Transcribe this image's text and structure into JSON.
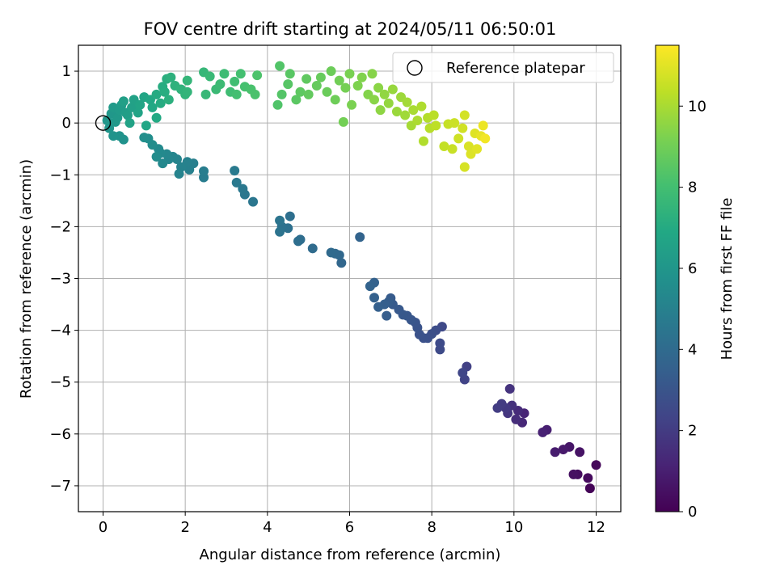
{
  "chart_data": {
    "type": "scatter",
    "title": "FOV centre drift starting at 2024/05/11 06:50:01",
    "xlabel": "Angular distance from reference (arcmin)",
    "ylabel": "Rotation from reference (arcmin)",
    "xlim": [
      -0.6,
      12.6
    ],
    "ylim": [
      -7.5,
      1.5
    ],
    "xticks": [
      0,
      2,
      4,
      6,
      8,
      10,
      12
    ],
    "yticks": [
      -7,
      -6,
      -5,
      -4,
      -3,
      -2,
      -1,
      0,
      1
    ],
    "grid": true,
    "colormap": "viridis",
    "colorbar": {
      "label": "Hours from first FF file",
      "range": [
        0,
        11.5
      ],
      "ticks": [
        0,
        2,
        4,
        6,
        8,
        10
      ]
    },
    "legend": {
      "placement": "top-right",
      "entries": [
        "Reference platepar"
      ]
    },
    "reference_point": {
      "x": 0,
      "y": 0
    },
    "points": [
      [
        11.85,
        -7.05,
        0.1
      ],
      [
        12.0,
        -6.6,
        0.2
      ],
      [
        11.8,
        -6.85,
        0.3
      ],
      [
        11.55,
        -6.78,
        0.4
      ],
      [
        11.45,
        -6.78,
        0.5
      ],
      [
        11.6,
        -6.35,
        0.6
      ],
      [
        11.35,
        -6.25,
        0.7
      ],
      [
        11.2,
        -6.3,
        0.8
      ],
      [
        11.0,
        -6.35,
        0.9
      ],
      [
        10.8,
        -5.92,
        1.0
      ],
      [
        10.7,
        -5.97,
        1.1
      ],
      [
        10.25,
        -5.6,
        1.2
      ],
      [
        10.2,
        -5.78,
        1.3
      ],
      [
        10.1,
        -5.55,
        1.4
      ],
      [
        10.05,
        -5.72,
        1.5
      ],
      [
        9.95,
        -5.45,
        1.6
      ],
      [
        9.9,
        -5.13,
        1.7
      ],
      [
        9.85,
        -5.6,
        1.8
      ],
      [
        9.8,
        -5.5,
        1.9
      ],
      [
        9.7,
        -5.42,
        2.0
      ],
      [
        9.6,
        -5.5,
        2.05
      ],
      [
        8.85,
        -4.7,
        2.2
      ],
      [
        8.8,
        -4.95,
        2.3
      ],
      [
        8.75,
        -4.82,
        2.4
      ],
      [
        8.25,
        -3.93,
        2.5
      ],
      [
        8.2,
        -4.37,
        2.55
      ],
      [
        8.2,
        -4.25,
        2.6
      ],
      [
        8.1,
        -4.0,
        2.7
      ],
      [
        8.0,
        -4.07,
        2.75
      ],
      [
        7.9,
        -4.15,
        2.8
      ],
      [
        7.8,
        -4.15,
        2.85
      ],
      [
        7.7,
        -4.08,
        2.9
      ],
      [
        7.65,
        -3.95,
        2.95
      ],
      [
        7.6,
        -3.85,
        3.0
      ],
      [
        7.5,
        -3.8,
        3.05
      ],
      [
        7.4,
        -3.72,
        3.1
      ],
      [
        7.3,
        -3.7,
        3.15
      ],
      [
        7.2,
        -3.6,
        3.2
      ],
      [
        7.05,
        -3.5,
        3.25
      ],
      [
        7.0,
        -3.38,
        3.3
      ],
      [
        6.95,
        -3.45,
        3.35
      ],
      [
        6.9,
        -3.72,
        3.4
      ],
      [
        6.85,
        -3.5,
        3.45
      ],
      [
        6.7,
        -3.55,
        3.5
      ],
      [
        6.6,
        -3.37,
        3.55
      ],
      [
        6.6,
        -3.08,
        3.6
      ],
      [
        6.5,
        -3.15,
        3.65
      ],
      [
        6.25,
        -2.2,
        3.7
      ],
      [
        5.8,
        -2.7,
        3.8
      ],
      [
        5.75,
        -2.55,
        3.85
      ],
      [
        5.65,
        -2.52,
        3.9
      ],
      [
        5.55,
        -2.5,
        3.95
      ],
      [
        5.1,
        -2.42,
        4.0
      ],
      [
        4.8,
        -2.25,
        4.1
      ],
      [
        4.75,
        -2.28,
        4.15
      ],
      [
        4.55,
        -1.8,
        4.2
      ],
      [
        4.5,
        -2.03,
        4.25
      ],
      [
        4.35,
        -2.0,
        4.3
      ],
      [
        4.3,
        -2.1,
        4.35
      ],
      [
        4.3,
        -1.88,
        4.4
      ],
      [
        3.65,
        -1.52,
        4.5
      ],
      [
        3.45,
        -1.38,
        4.55
      ],
      [
        3.4,
        -1.27,
        4.6
      ],
      [
        3.25,
        -1.15,
        4.65
      ],
      [
        3.2,
        -0.92,
        4.7
      ],
      [
        2.45,
        -1.05,
        4.8
      ],
      [
        2.45,
        -0.93,
        4.85
      ],
      [
        2.2,
        -0.78,
        4.9
      ],
      [
        2.1,
        -0.9,
        4.95
      ],
      [
        2.05,
        -0.75,
        5.0
      ],
      [
        1.9,
        -0.85,
        5.05
      ],
      [
        1.85,
        -0.98,
        5.1
      ],
      [
        1.8,
        -0.7,
        5.15
      ],
      [
        1.7,
        -0.65,
        5.2
      ],
      [
        1.6,
        -0.7,
        5.25
      ],
      [
        1.55,
        -0.6,
        5.3
      ],
      [
        1.45,
        -0.78,
        5.35
      ],
      [
        1.4,
        -0.58,
        5.4
      ],
      [
        1.35,
        -0.5,
        5.45
      ],
      [
        1.3,
        -0.65,
        5.5
      ],
      [
        1.2,
        -0.42,
        5.55
      ],
      [
        1.1,
        -0.3,
        5.6
      ],
      [
        1.0,
        -0.28,
        5.65
      ],
      [
        0.5,
        -0.32,
        5.8
      ],
      [
        0.4,
        -0.25,
        5.85
      ],
      [
        0.25,
        -0.25,
        5.9
      ],
      [
        0.15,
        -0.1,
        5.95
      ],
      [
        0.1,
        0.05,
        6.0
      ],
      [
        0.2,
        0.18,
        6.05
      ],
      [
        0.3,
        0.02,
        6.1
      ],
      [
        0.35,
        0.1,
        6.15
      ],
      [
        0.25,
        0.3,
        6.2
      ],
      [
        0.4,
        0.25,
        6.25
      ],
      [
        0.45,
        0.35,
        6.3
      ],
      [
        0.55,
        0.2,
        6.35
      ],
      [
        0.6,
        0.15,
        6.4
      ],
      [
        0.5,
        0.42,
        6.45
      ],
      [
        0.7,
        0.3,
        6.5
      ],
      [
        0.75,
        0.45,
        6.55
      ],
      [
        0.65,
        0.0,
        6.6
      ],
      [
        0.85,
        0.2,
        6.65
      ],
      [
        0.9,
        0.35,
        6.7
      ],
      [
        1.0,
        0.5,
        6.75
      ],
      [
        1.05,
        -0.05,
        6.8
      ],
      [
        1.15,
        0.45,
        6.85
      ],
      [
        1.2,
        0.3,
        6.9
      ],
      [
        1.3,
        0.1,
        6.95
      ],
      [
        1.3,
        0.55,
        7.0
      ],
      [
        1.4,
        0.38,
        7.05
      ],
      [
        1.45,
        0.7,
        7.1
      ],
      [
        1.5,
        0.6,
        7.15
      ],
      [
        1.55,
        0.85,
        7.2
      ],
      [
        1.6,
        0.45,
        7.25
      ],
      [
        1.65,
        0.88,
        7.3
      ],
      [
        1.75,
        0.72,
        7.35
      ],
      [
        1.9,
        0.65,
        7.4
      ],
      [
        2.0,
        0.55,
        7.45
      ],
      [
        2.05,
        0.6,
        7.5
      ],
      [
        2.05,
        0.82,
        7.55
      ],
      [
        2.45,
        0.98,
        7.6
      ],
      [
        2.5,
        0.55,
        7.65
      ],
      [
        2.6,
        0.9,
        7.7
      ],
      [
        2.75,
        0.65,
        7.75
      ],
      [
        2.85,
        0.75,
        7.8
      ],
      [
        2.95,
        0.95,
        7.85
      ],
      [
        3.1,
        0.6,
        7.9
      ],
      [
        3.2,
        0.8,
        7.95
      ],
      [
        3.25,
        0.55,
        8.0
      ],
      [
        3.35,
        0.95,
        8.05
      ],
      [
        3.45,
        0.7,
        8.1
      ],
      [
        3.6,
        0.65,
        8.15
      ],
      [
        3.7,
        0.55,
        8.2
      ],
      [
        3.75,
        0.92,
        8.25
      ],
      [
        4.25,
        0.35,
        8.3
      ],
      [
        4.3,
        1.1,
        8.35
      ],
      [
        4.35,
        0.55,
        8.4
      ],
      [
        4.5,
        0.75,
        8.45
      ],
      [
        4.55,
        0.95,
        8.5
      ],
      [
        4.7,
        0.45,
        8.55
      ],
      [
        4.8,
        0.6,
        8.6
      ],
      [
        4.95,
        0.85,
        8.65
      ],
      [
        5.0,
        0.55,
        8.7
      ],
      [
        5.2,
        0.72,
        8.75
      ],
      [
        5.3,
        0.88,
        8.8
      ],
      [
        5.45,
        0.6,
        8.85
      ],
      [
        5.55,
        1.0,
        8.9
      ],
      [
        5.65,
        0.45,
        8.95
      ],
      [
        5.75,
        0.82,
        9.0
      ],
      [
        5.85,
        0.02,
        9.05
      ],
      [
        5.9,
        0.68,
        9.1
      ],
      [
        6.0,
        0.95,
        9.15
      ],
      [
        6.05,
        0.35,
        9.2
      ],
      [
        6.2,
        0.72,
        9.25
      ],
      [
        6.3,
        0.88,
        9.3
      ],
      [
        6.45,
        0.55,
        9.35
      ],
      [
        6.55,
        0.95,
        9.4
      ],
      [
        6.6,
        0.45,
        9.45
      ],
      [
        6.7,
        0.68,
        9.5
      ],
      [
        6.75,
        0.25,
        9.55
      ],
      [
        6.85,
        0.55,
        9.6
      ],
      [
        6.95,
        0.38,
        9.65
      ],
      [
        7.05,
        0.65,
        9.7
      ],
      [
        7.15,
        0.22,
        9.75
      ],
      [
        7.25,
        0.5,
        9.8
      ],
      [
        7.35,
        0.15,
        9.85
      ],
      [
        7.4,
        0.4,
        9.9
      ],
      [
        7.5,
        -0.05,
        9.95
      ],
      [
        7.55,
        0.25,
        10.0
      ],
      [
        7.65,
        0.05,
        10.05
      ],
      [
        7.75,
        0.32,
        10.1
      ],
      [
        7.8,
        -0.35,
        10.15
      ],
      [
        7.9,
        0.1,
        10.2
      ],
      [
        7.95,
        -0.1,
        10.25
      ],
      [
        8.05,
        0.15,
        10.3
      ],
      [
        8.1,
        -0.05,
        10.35
      ],
      [
        8.3,
        -0.45,
        10.45
      ],
      [
        8.4,
        -0.02,
        10.5
      ],
      [
        8.5,
        -0.5,
        10.55
      ],
      [
        8.55,
        0.0,
        10.6
      ],
      [
        8.65,
        -0.3,
        10.65
      ],
      [
        8.75,
        -0.1,
        10.7
      ],
      [
        8.8,
        0.15,
        10.75
      ],
      [
        8.8,
        -0.85,
        10.8
      ],
      [
        8.9,
        -0.45,
        10.85
      ],
      [
        8.95,
        -0.6,
        10.9
      ],
      [
        9.05,
        -0.2,
        10.95
      ],
      [
        9.1,
        -0.5,
        11.0
      ],
      [
        9.2,
        -0.25,
        11.1
      ],
      [
        9.25,
        -0.05,
        11.2
      ],
      [
        9.3,
        -0.3,
        11.3
      ]
    ]
  }
}
